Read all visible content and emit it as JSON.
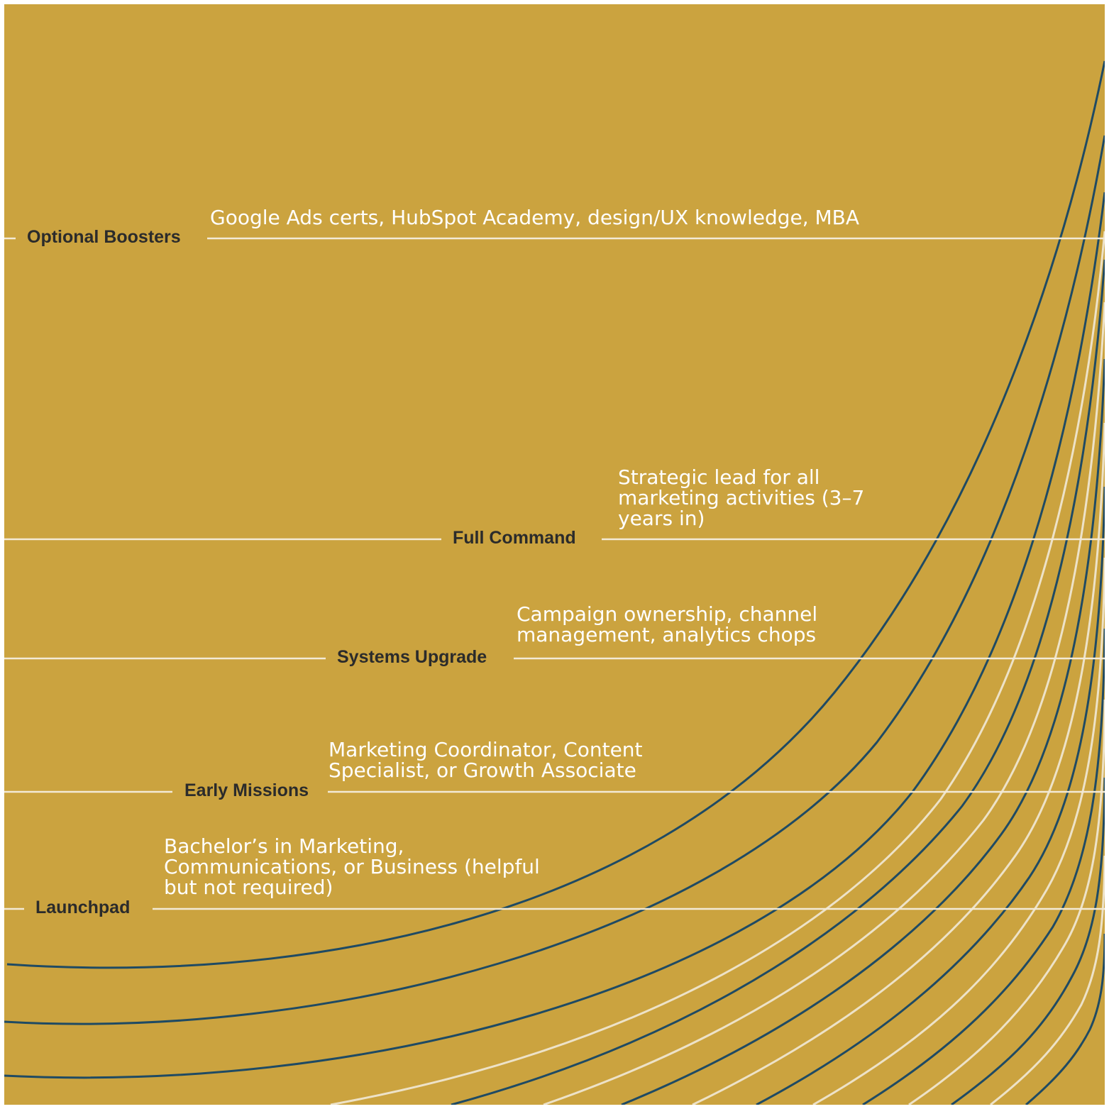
{
  "colors": {
    "background": "#cba33f",
    "rule": "#f3ead6",
    "curve_dark": "#1f4a63",
    "curve_light": "#ede2c8",
    "label": "#2b2b2b",
    "description": "#ffffff"
  },
  "stages": [
    {
      "id": "optional-boosters",
      "label": "Optional Boosters",
      "description": "Google Ads certs, HubSpot Academy, design/UX knowledge, MBA"
    },
    {
      "id": "full-command",
      "label": "Full Command",
      "description": "Strategic lead for all marketing activities (3–7 years in)"
    },
    {
      "id": "systems-upgrade",
      "label": "Systems Upgrade",
      "description": "Campaign ownership, channel management, analytics chops"
    },
    {
      "id": "early-missions",
      "label": "Early Missions",
      "description": "Marketing Coordinator, Content Specialist, or Growth Associate"
    },
    {
      "id": "launchpad",
      "label": "Launchpad",
      "description": "Bachelor’s in Marketing, Communications, or Business (helpful but not required)"
    }
  ],
  "curves": [
    {
      "tone": "dark"
    },
    {
      "tone": "dark"
    },
    {
      "tone": "dark"
    },
    {
      "tone": "light"
    },
    {
      "tone": "dark"
    },
    {
      "tone": "light"
    },
    {
      "tone": "dark"
    },
    {
      "tone": "light"
    },
    {
      "tone": "dark"
    },
    {
      "tone": "light"
    },
    {
      "tone": "dark"
    },
    {
      "tone": "light"
    },
    {
      "tone": "dark"
    },
    {
      "tone": "light"
    },
    {
      "tone": "dark"
    }
  ]
}
